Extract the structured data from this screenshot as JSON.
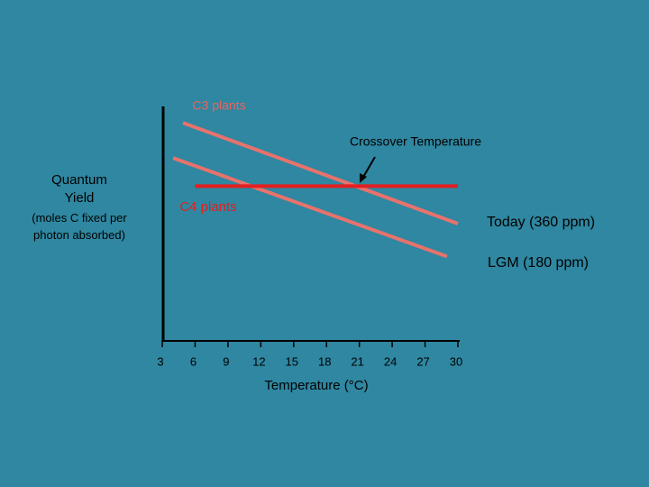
{
  "chart_data": {
    "type": "line",
    "annotations": {
      "c3": "C3 plants",
      "crossover": "Crossover Temperature"
    },
    "y_label": "Quantum Yield",
    "y_label_sub": "(moles C fixed per photon absorbed)",
    "x_label": "Temperature (°C)",
    "xlim": [
      3,
      30
    ],
    "ylim": [
      0,
      100
    ],
    "xticks": [
      3,
      6,
      9,
      12,
      15,
      18,
      21,
      24,
      27,
      30
    ],
    "series": [
      {
        "name": "Today (360 ppm)",
        "color": "#e8726c",
        "x": [
          4.9,
          30
        ],
        "values": [
          93,
          50
        ]
      },
      {
        "name": "LGM (180 ppm)",
        "color": "#e8726c",
        "x": [
          4,
          29
        ],
        "values": [
          78,
          36
        ]
      },
      {
        "name": "C4 plants",
        "color": "#e21f1f",
        "x": [
          6,
          30
        ],
        "values": [
          66,
          66
        ]
      }
    ]
  }
}
